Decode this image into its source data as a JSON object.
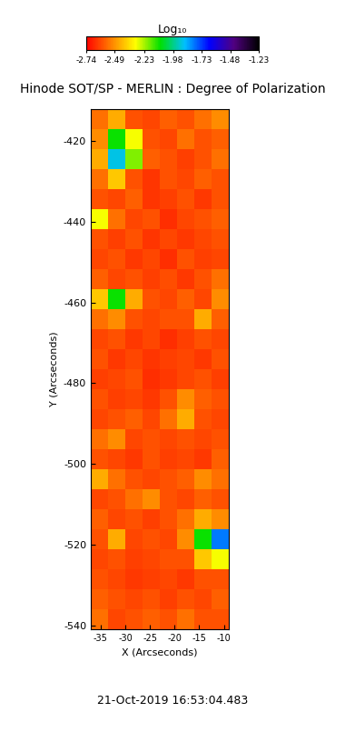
{
  "chart_data": {
    "type": "heatmap",
    "title": "Hinode SOT/SP - MERLIN : Degree of Polarization",
    "x_label": "X (Arcseconds)",
    "y_label": "Y (Arcseconds)",
    "annotation": "21-Oct-2019 16:53:04.483",
    "xlim": [
      -37,
      -9
    ],
    "xticks": [
      -35,
      -30,
      -25,
      -20,
      -15,
      -10
    ],
    "ylim": [
      -541,
      -412
    ],
    "yticks": [
      -540,
      -520,
      -500,
      -480,
      -460,
      -440,
      -420
    ],
    "colorbar_title": "Log₁₀",
    "zlim": [
      -2.74,
      -1.23
    ],
    "zticks": [
      -2.74,
      -2.49,
      -2.23,
      -1.98,
      -1.73,
      -1.48,
      -1.23
    ],
    "z": [
      [
        -2.55,
        -2.45,
        -2.6,
        -2.62,
        -2.58,
        -2.6,
        -2.55,
        -2.5
      ],
      [
        -2.5,
        -2.1,
        -2.3,
        -2.6,
        -2.62,
        -2.55,
        -2.6,
        -2.58
      ],
      [
        -2.45,
        -1.9,
        -2.2,
        -2.58,
        -2.6,
        -2.63,
        -2.6,
        -2.55
      ],
      [
        -2.55,
        -2.4,
        -2.6,
        -2.65,
        -2.6,
        -2.62,
        -2.58,
        -2.6
      ],
      [
        -2.6,
        -2.62,
        -2.58,
        -2.65,
        -2.63,
        -2.6,
        -2.64,
        -2.6
      ],
      [
        -2.3,
        -2.55,
        -2.62,
        -2.6,
        -2.66,
        -2.62,
        -2.6,
        -2.58
      ],
      [
        -2.6,
        -2.63,
        -2.6,
        -2.65,
        -2.62,
        -2.64,
        -2.62,
        -2.6
      ],
      [
        -2.62,
        -2.6,
        -2.64,
        -2.62,
        -2.66,
        -2.6,
        -2.63,
        -2.62
      ],
      [
        -2.58,
        -2.62,
        -2.6,
        -2.63,
        -2.61,
        -2.64,
        -2.6,
        -2.55
      ],
      [
        -2.4,
        -2.1,
        -2.45,
        -2.6,
        -2.62,
        -2.58,
        -2.62,
        -2.5
      ],
      [
        -2.55,
        -2.5,
        -2.6,
        -2.62,
        -2.6,
        -2.6,
        -2.45,
        -2.58
      ],
      [
        -2.62,
        -2.6,
        -2.64,
        -2.62,
        -2.66,
        -2.63,
        -2.6,
        -2.62
      ],
      [
        -2.6,
        -2.64,
        -2.62,
        -2.65,
        -2.63,
        -2.62,
        -2.64,
        -2.6
      ],
      [
        -2.63,
        -2.62,
        -2.6,
        -2.66,
        -2.64,
        -2.62,
        -2.6,
        -2.63
      ],
      [
        -2.6,
        -2.63,
        -2.62,
        -2.64,
        -2.6,
        -2.5,
        -2.58,
        -2.6
      ],
      [
        -2.62,
        -2.6,
        -2.58,
        -2.62,
        -2.55,
        -2.45,
        -2.6,
        -2.62
      ],
      [
        -2.55,
        -2.5,
        -2.62,
        -2.6,
        -2.62,
        -2.6,
        -2.62,
        -2.6
      ],
      [
        -2.6,
        -2.62,
        -2.64,
        -2.6,
        -2.63,
        -2.62,
        -2.64,
        -2.58
      ],
      [
        -2.45,
        -2.55,
        -2.6,
        -2.62,
        -2.6,
        -2.58,
        -2.5,
        -2.55
      ],
      [
        -2.62,
        -2.6,
        -2.55,
        -2.5,
        -2.6,
        -2.62,
        -2.58,
        -2.6
      ],
      [
        -2.58,
        -2.62,
        -2.6,
        -2.63,
        -2.6,
        -2.55,
        -2.45,
        -2.5
      ],
      [
        -2.6,
        -2.45,
        -2.62,
        -2.6,
        -2.62,
        -2.5,
        -2.1,
        -1.8
      ],
      [
        -2.62,
        -2.6,
        -2.63,
        -2.62,
        -2.6,
        -2.6,
        -2.4,
        -2.3
      ],
      [
        -2.6,
        -2.62,
        -2.64,
        -2.63,
        -2.62,
        -2.64,
        -2.6,
        -2.6
      ],
      [
        -2.58,
        -2.6,
        -2.62,
        -2.6,
        -2.63,
        -2.6,
        -2.62,
        -2.58
      ],
      [
        -2.55,
        -2.62,
        -2.6,
        -2.58,
        -2.6,
        -2.55,
        -2.6,
        -2.6
      ]
    ]
  }
}
